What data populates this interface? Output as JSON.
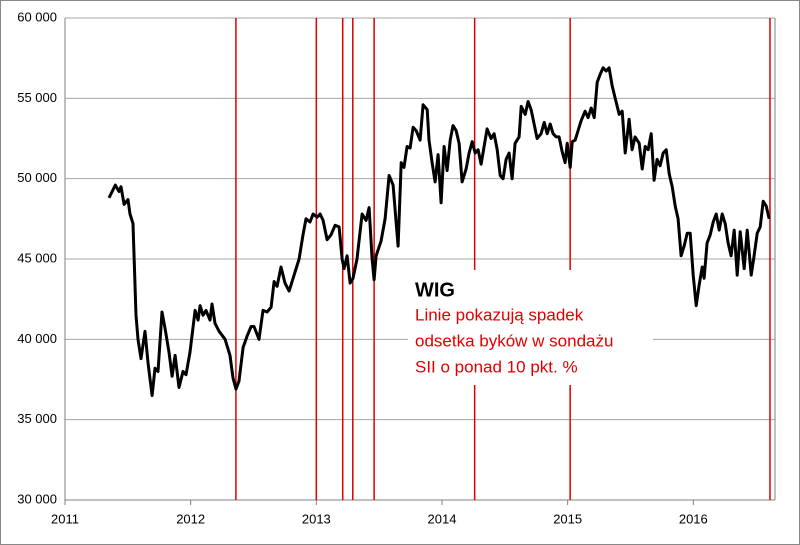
{
  "chart_data": {
    "type": "line",
    "title": "WIG",
    "annotation_lines": [
      "Linie pokazują spadek",
      "odsetka byków w sondażu",
      "SII o ponad 10 pkt. %"
    ],
    "xlim": [
      2011,
      2016.65
    ],
    "xticks": [
      2011,
      2012,
      2013,
      2014,
      2015,
      2016
    ],
    "ylim": [
      30000,
      60000
    ],
    "yticks": [
      {
        "value": 30000,
        "label": "30 000"
      },
      {
        "value": 35000,
        "label": "35 000"
      },
      {
        "value": 40000,
        "label": "40 000"
      },
      {
        "value": 45000,
        "label": "45 000"
      },
      {
        "value": 50000,
        "label": "50 000"
      },
      {
        "value": 55000,
        "label": "55 000"
      },
      {
        "value": 60000,
        "label": "60 000"
      }
    ],
    "grid": true,
    "vlines": {
      "color": "#e00000",
      "x": [
        2012.36,
        2013.0,
        2013.21,
        2013.29,
        2013.46,
        2014.26,
        2015.02,
        2016.61
      ]
    },
    "series": [
      {
        "name": "WIG",
        "color": "#000000",
        "x": [
          2011.35,
          2011.4,
          2011.43,
          2011.446,
          2011.47,
          2011.501,
          2011.517,
          2011.541,
          2011.565,
          2011.581,
          2011.605,
          2011.637,
          2011.661,
          2011.693,
          2011.716,
          2011.74,
          2011.772,
          2011.796,
          2011.828,
          2011.852,
          2011.876,
          2011.907,
          2011.939,
          2011.963,
          2011.995,
          2012.035,
          2012.059,
          2012.075,
          2012.098,
          2012.122,
          2012.154,
          2012.17,
          2012.194,
          2012.226,
          2012.274,
          2012.313,
          2012.337,
          2012.361,
          2012.385,
          2012.417,
          2012.449,
          2012.481,
          2012.504,
          2012.544,
          2012.576,
          2012.608,
          2012.64,
          2012.664,
          2012.688,
          2012.719,
          2012.751,
          2012.783,
          2012.815,
          2012.863,
          2012.894,
          2012.918,
          2012.95,
          2012.974,
          2013.006,
          2013.03,
          2013.054,
          2013.086,
          2013.117,
          2013.149,
          2013.181,
          2013.205,
          2013.221,
          2013.245,
          2013.269,
          2013.292,
          2013.324,
          2013.364,
          2013.396,
          2013.42,
          2013.444,
          2013.46,
          2013.476,
          2013.515,
          2013.547,
          2013.579,
          2013.611,
          2013.635,
          2013.651,
          2013.675,
          2013.698,
          2013.722,
          2013.746,
          2013.77,
          2013.794,
          2013.826,
          2013.85,
          2013.882,
          2013.897,
          2013.921,
          2013.945,
          2013.969,
          2013.993,
          2014.017,
          2014.041,
          2014.065,
          2014.088,
          2014.112,
          2014.136,
          2014.16,
          2014.192,
          2014.216,
          2014.24,
          2014.264,
          2014.287,
          2014.311,
          2014.335,
          2014.359,
          2014.391,
          2014.415,
          2014.439,
          2014.463,
          2014.486,
          2014.51,
          2014.534,
          2014.558,
          2014.582,
          2014.614,
          2014.63,
          2014.662,
          2014.685,
          2014.709,
          2014.733,
          2014.757,
          2014.789,
          2014.813,
          2014.837,
          2014.861,
          2014.884,
          2014.908,
          2014.932,
          2014.956,
          2014.98,
          2014.996,
          2015.02,
          2015.036,
          2015.06,
          2015.083,
          2015.107,
          2015.139,
          2015.163,
          2015.187,
          2015.211,
          2015.235,
          2015.259,
          2015.282,
          2015.306,
          2015.33,
          2015.354,
          2015.378,
          2015.41,
          2015.434,
          2015.458,
          2015.489,
          2015.513,
          2015.537,
          2015.569,
          2015.593,
          2015.617,
          2015.641,
          2015.665,
          2015.688,
          2015.712,
          2015.736,
          2015.76,
          2015.784,
          2015.808,
          2015.832,
          2015.856,
          2015.879,
          2015.903,
          2015.927,
          2015.951,
          2015.975,
          2015.999,
          2016.023,
          2016.047,
          2016.071,
          2016.086,
          2016.11,
          2016.134,
          2016.158,
          2016.182,
          2016.206,
          2016.23,
          2016.254,
          2016.277,
          2016.301,
          2016.325,
          2016.349,
          2016.373,
          2016.405,
          2016.429,
          2016.461,
          2016.484,
          2016.508,
          2016.532,
          2016.556,
          2016.58,
          2016.604
        ],
        "values": [
          48800,
          49600,
          49200,
          49500,
          48400,
          48700,
          47800,
          47200,
          41500,
          40000,
          38800,
          40500,
          38500,
          36500,
          38200,
          38000,
          41700,
          40700,
          39200,
          37700,
          39000,
          37000,
          38000,
          37800,
          39200,
          41800,
          41200,
          42100,
          41500,
          41800,
          41200,
          42200,
          41000,
          40500,
          40000,
          39000,
          37600,
          36900,
          37400,
          39500,
          40200,
          40800,
          40800,
          40000,
          41800,
          41700,
          42000,
          43600,
          43300,
          44500,
          43500,
          43000,
          43800,
          45000,
          46500,
          47500,
          47300,
          47800,
          47600,
          47800,
          47400,
          46200,
          46500,
          47100,
          47000,
          45000,
          44400,
          45200,
          43500,
          43800,
          45000,
          47800,
          47400,
          48200,
          45000,
          43700,
          45200,
          46100,
          47500,
          50200,
          49600,
          47300,
          45800,
          51000,
          50700,
          52000,
          51900,
          53200,
          53000,
          52400,
          54600,
          54300,
          52400,
          51000,
          49800,
          51500,
          48500,
          52000,
          50500,
          52400,
          53300,
          53000,
          52200,
          49800,
          50600,
          51600,
          52300,
          51600,
          51800,
          50900,
          52000,
          53100,
          52500,
          52800,
          51800,
          50200,
          50000,
          51200,
          51600,
          50000,
          52200,
          52600,
          54500,
          54000,
          54800,
          54300,
          53400,
          52500,
          52800,
          53500,
          52800,
          53400,
          52800,
          52600,
          52600,
          51700,
          51000,
          52200,
          50700,
          52300,
          52400,
          53000,
          53600,
          54200,
          53800,
          54400,
          53800,
          56000,
          56500,
          56900,
          56700,
          56900,
          55800,
          55000,
          54000,
          54200,
          51600,
          53700,
          51800,
          52600,
          52200,
          50600,
          52000,
          51800,
          52800,
          49900,
          51200,
          50800,
          51600,
          51800,
          50300,
          49500,
          48300,
          47500,
          45200,
          45800,
          46600,
          46600,
          44000,
          42100,
          43400,
          44500,
          43800,
          46000,
          46500,
          47300,
          47800,
          46800,
          47800,
          47200,
          46000,
          45200,
          46800,
          44000,
          46700,
          44400,
          46800,
          44000,
          45200,
          46600,
          47000,
          48600,
          48300,
          47500
        ]
      }
    ]
  }
}
